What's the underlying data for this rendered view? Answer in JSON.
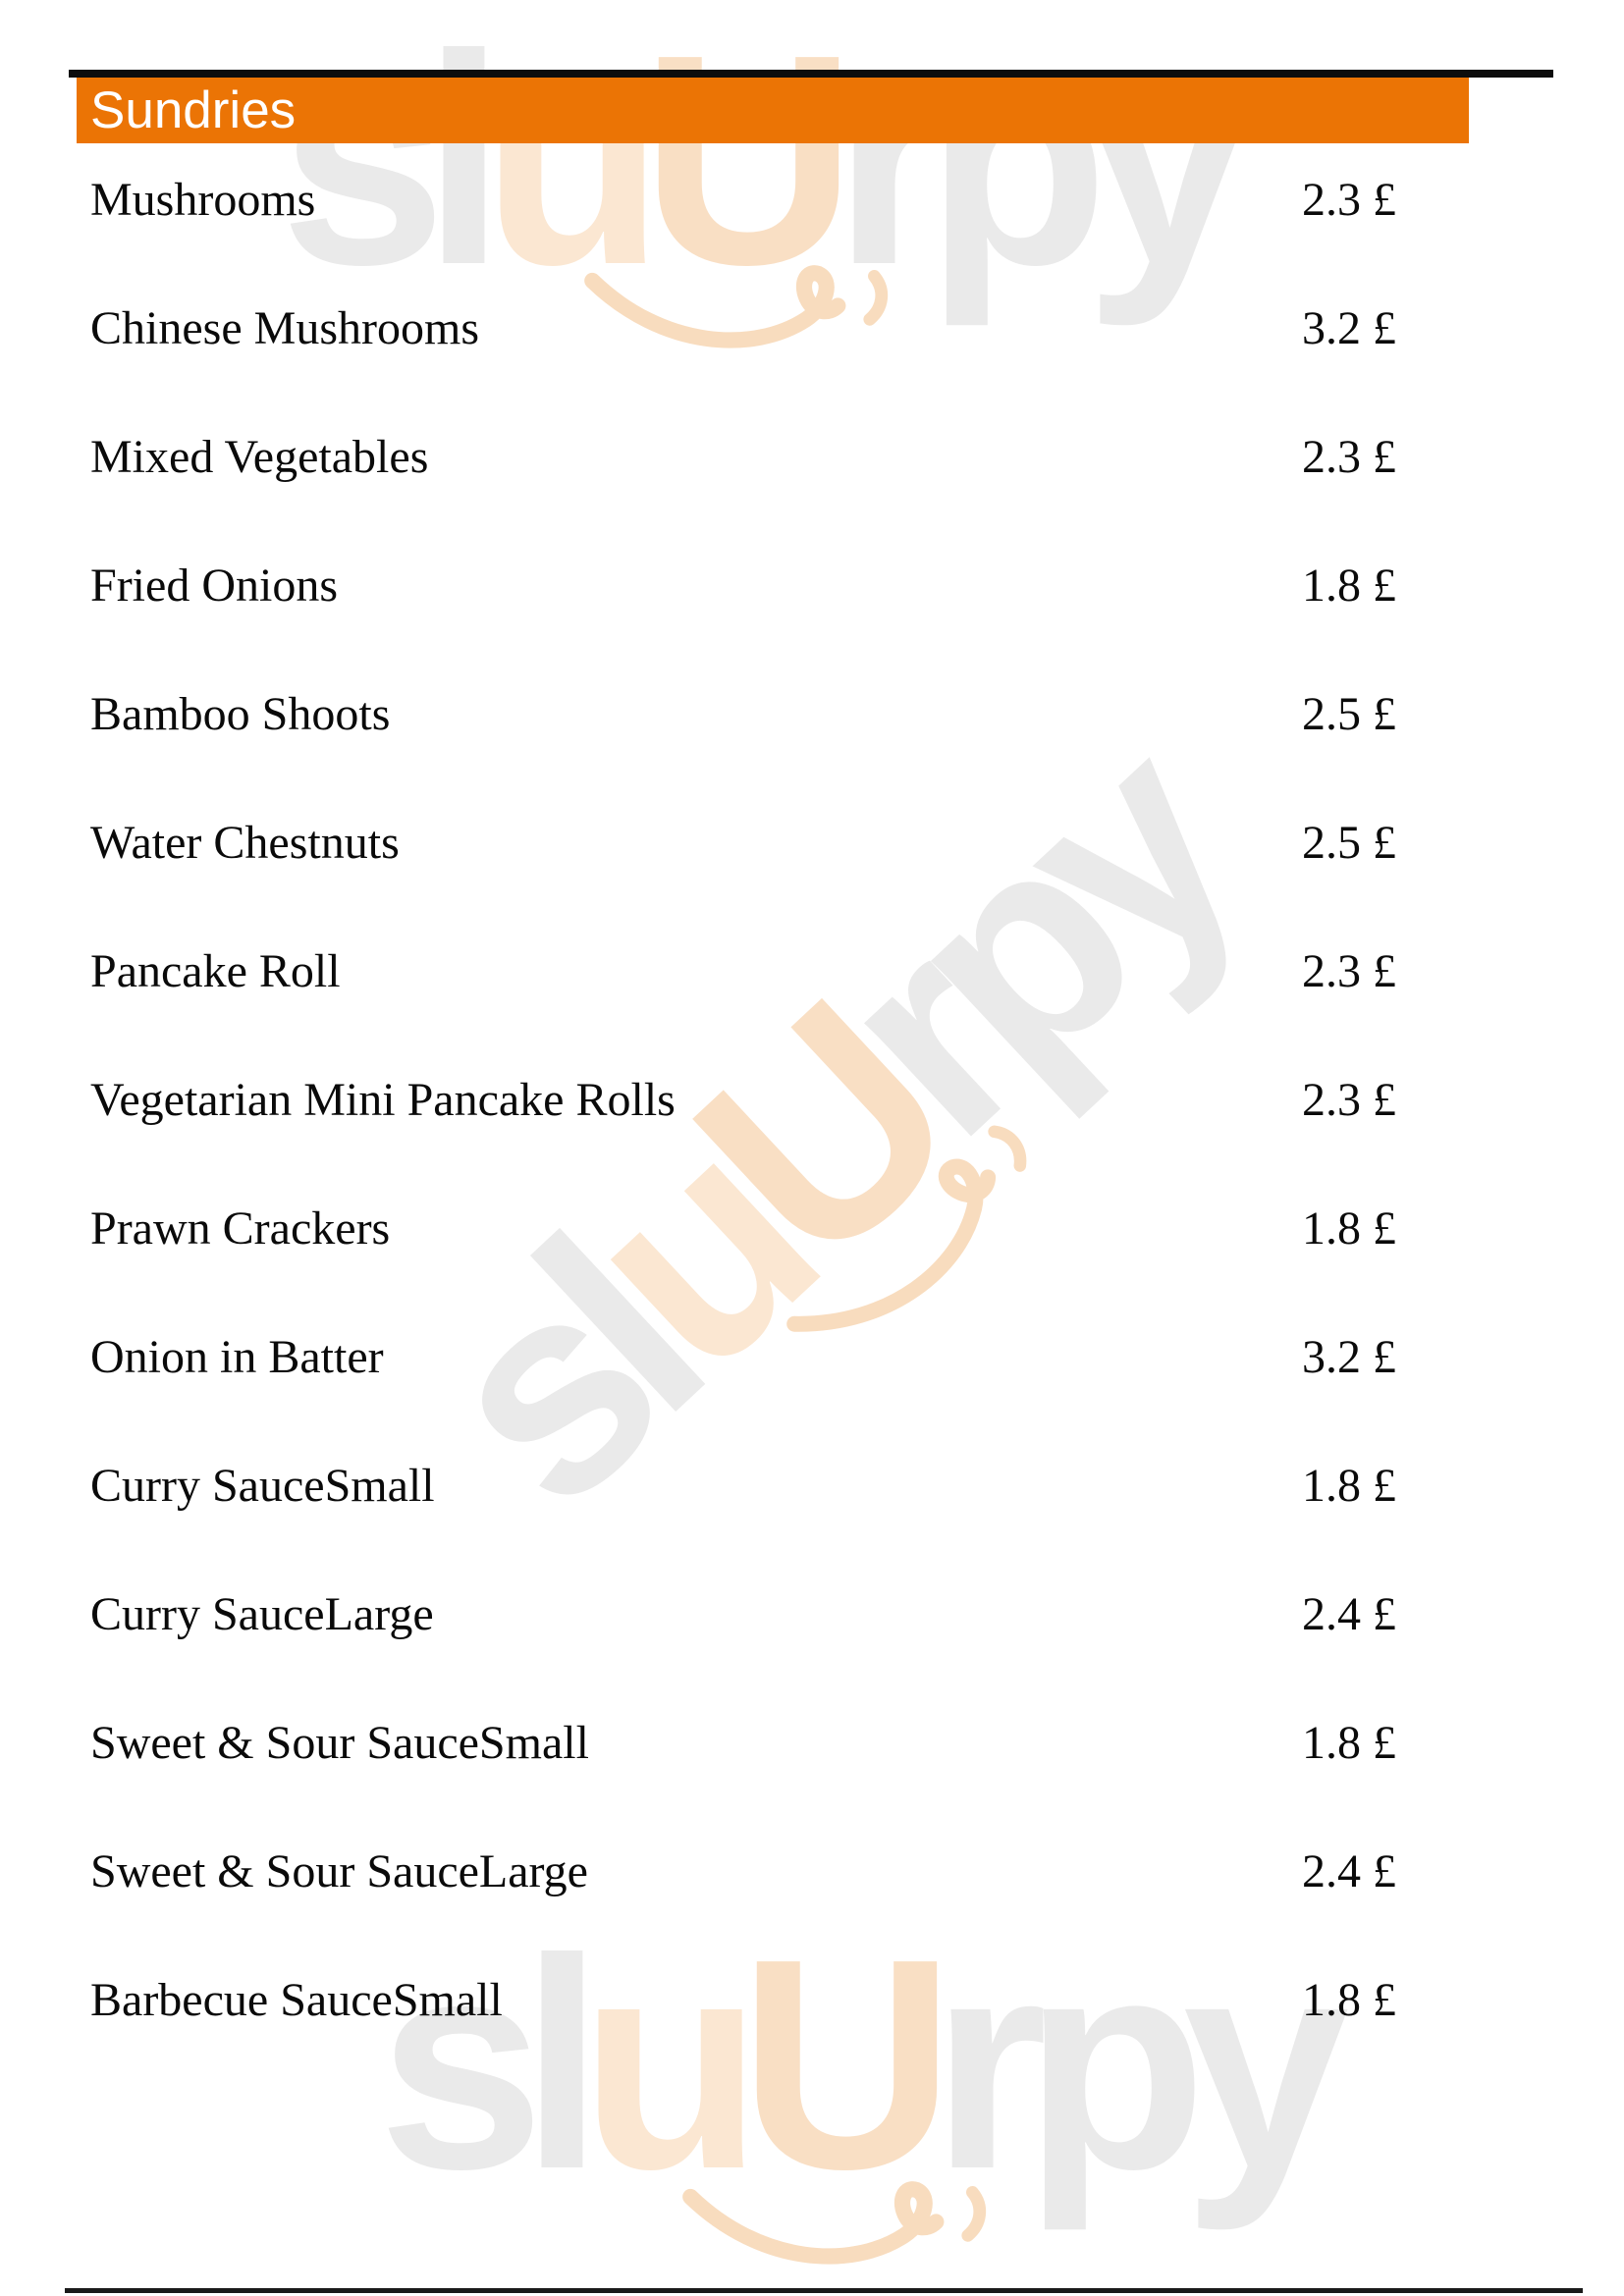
{
  "page": {
    "background_color": "#ffffff",
    "top_rule_color": "#0d0d0d",
    "bottom_rule_color": "#1a1a1a"
  },
  "header": {
    "title": "Sundries",
    "bar_color": "#EB7405",
    "text_color": "#FFFFFF"
  },
  "menu": {
    "items": [
      {
        "name": "Mushrooms",
        "price": "2.3 £"
      },
      {
        "name": "Chinese Mushrooms",
        "price": "3.2 £"
      },
      {
        "name": "Mixed Vegetables",
        "price": "2.3 £"
      },
      {
        "name": "Fried Onions",
        "price": "1.8 £"
      },
      {
        "name": "Bamboo Shoots",
        "price": "2.5 £"
      },
      {
        "name": "Water Chestnuts",
        "price": "2.5 £"
      },
      {
        "name": "Pancake Roll",
        "price": "2.3 £"
      },
      {
        "name": "Vegetarian Mini Pancake Rolls",
        "price": "2.3 £"
      },
      {
        "name": "Prawn Crackers",
        "price": "1.8 £"
      },
      {
        "name": "Onion in Batter",
        "price": "3.2 £"
      },
      {
        "name": "Curry SauceSmall",
        "price": "1.8 £"
      },
      {
        "name": "Curry SauceLarge",
        "price": "2.4 £"
      },
      {
        "name": "Sweet & Sour SauceSmall",
        "price": "1.8 £"
      },
      {
        "name": "Sweet & Sour SauceLarge",
        "price": "2.4 £"
      },
      {
        "name": "Barbecue SauceSmall",
        "price": "1.8 £"
      }
    ]
  },
  "watermark": {
    "brand": "sluUrpy",
    "segments": [
      {
        "text": "sl",
        "color": "#EAEAEA"
      },
      {
        "text": "u",
        "color": "#FBE7D2"
      },
      {
        "text": "U",
        "color": "#F9DFC4"
      },
      {
        "text": "rpy",
        "color": "#EAEAEA"
      }
    ],
    "smile_color": "#F8DCBE"
  }
}
